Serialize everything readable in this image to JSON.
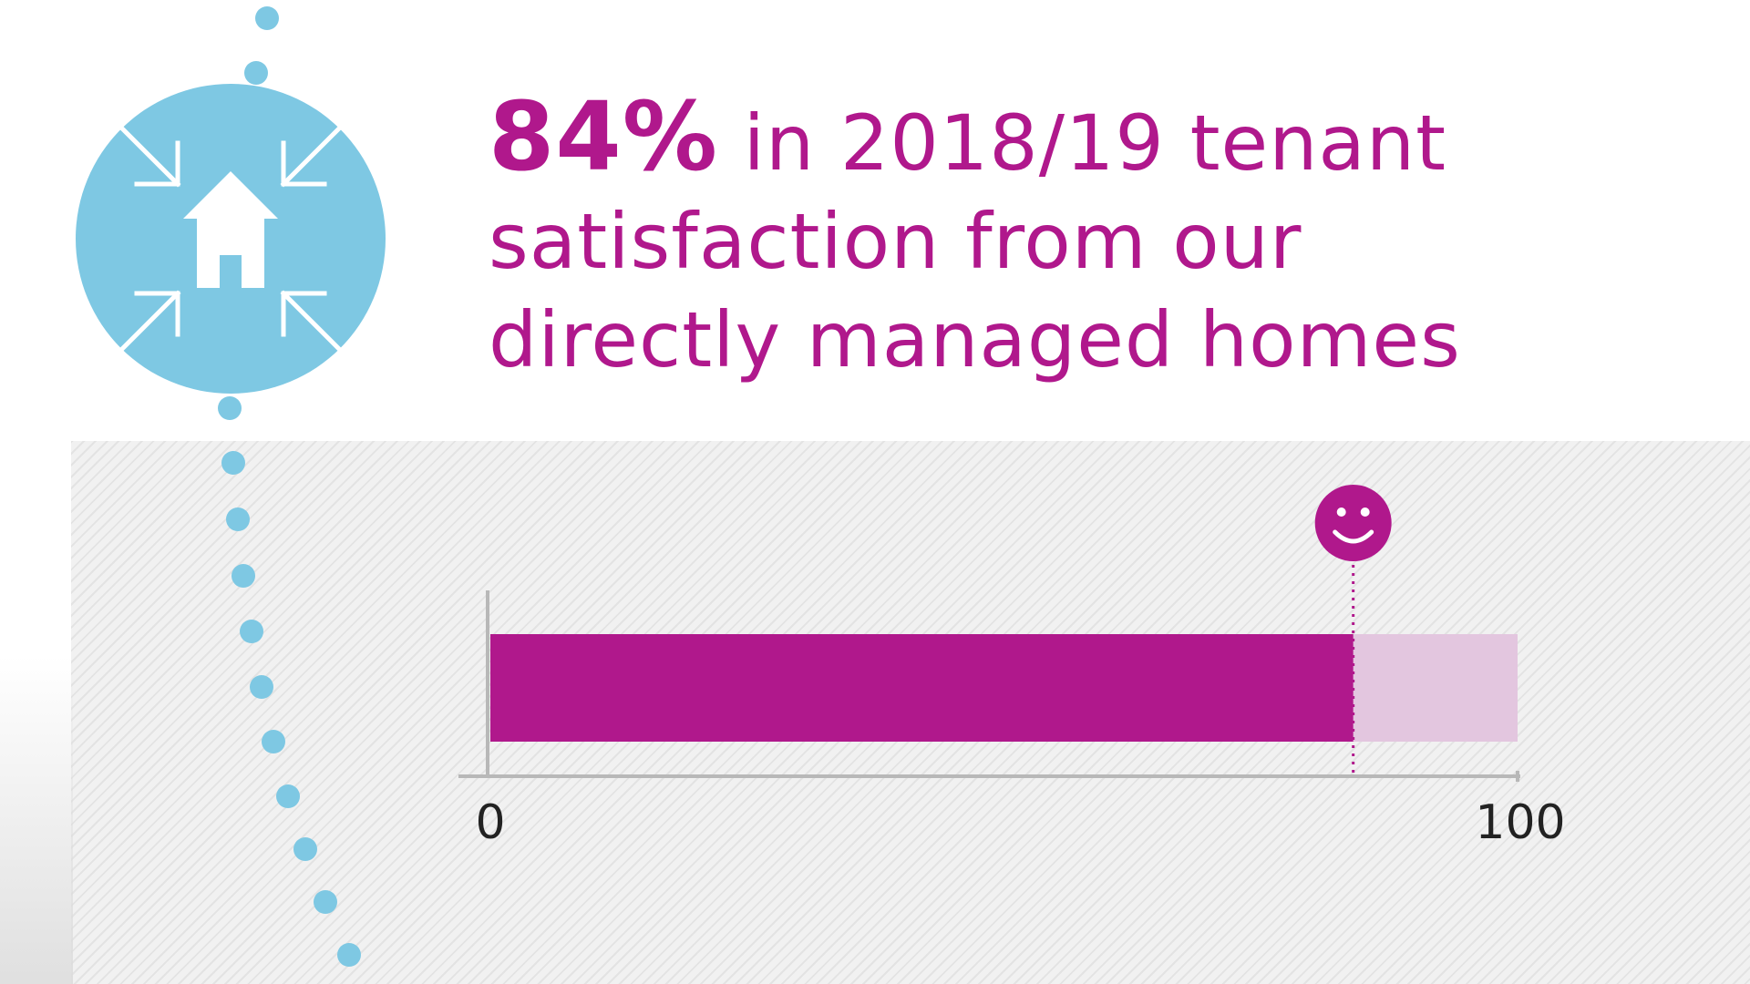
{
  "headline": {
    "percent": "84%",
    "line1_rest": " in 2018/19 tenant",
    "line2": "satisfaction from our",
    "line3": "directly managed homes"
  },
  "icon": {
    "name": "house-compress-icon",
    "color": "#7ec8e3"
  },
  "colors": {
    "accent": "#b0188c",
    "bar_remainder": "#e3c6df",
    "axis": "#b8b8b8",
    "dots": "#7ec8e3",
    "text": "#222222"
  },
  "chart_data": {
    "type": "bar",
    "orientation": "horizontal",
    "title": "",
    "xlabel": "",
    "ylabel": "",
    "xlim": [
      0,
      100
    ],
    "tick_labels": [
      "0",
      "100"
    ],
    "values": [
      84
    ],
    "marker": "smiley-face-icon",
    "grid": false
  }
}
